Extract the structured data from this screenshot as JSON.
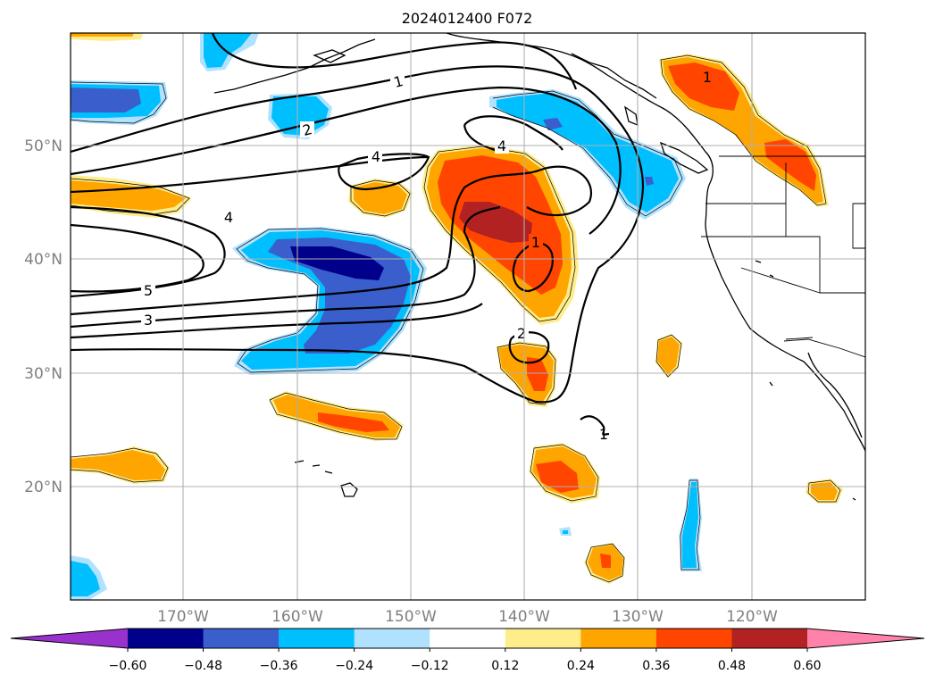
{
  "title": "2024012400 F072",
  "lat_labels": [
    "50°N",
    "40°N",
    "30°N",
    "20°N"
  ],
  "lon_labels": [
    "170°W",
    "160°W",
    "150°W",
    "140°W",
    "130°W",
    "120°W"
  ],
  "colorbar": {
    "ticks": [
      "−0.60",
      "−0.48",
      "−0.36",
      "−0.24",
      "−0.12",
      "0.12",
      "0.24",
      "0.36",
      "0.48",
      "0.60"
    ],
    "colors": [
      "#9932cc",
      "#00008b",
      "#3a5fcd",
      "#00bfff",
      "#b0e2ff",
      "#ffffff",
      "#ffec8b",
      "#ffa500",
      "#ff4500",
      "#b22222",
      "#ff82ab"
    ]
  },
  "contour_labels": [
    "1",
    "2",
    "4",
    "4",
    "4",
    "5",
    "3",
    "1",
    "2",
    "1",
    "1"
  ],
  "colors": {
    "grid": "#b0b0b0",
    "axis_label": "#7f7f7f",
    "coast": "#000000"
  }
}
